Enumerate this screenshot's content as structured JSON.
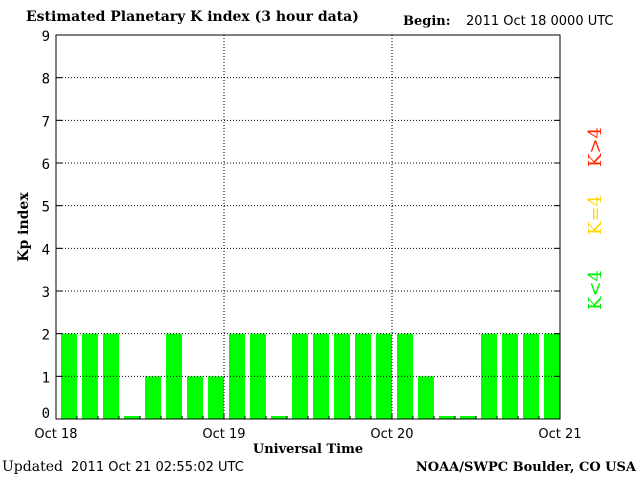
{
  "header": {
    "title": "Estimated Planetary K index (3 hour data)",
    "begin_label": "Begin:",
    "begin_value": "2011 Oct 18 0000 UTC"
  },
  "footer": {
    "updated_label": "Updated",
    "updated_value": "2011 Oct 21 02:55:02 UTC",
    "credit": "NOAA/SWPC Boulder, CO USA"
  },
  "legend": [
    {
      "label": "K>4",
      "color": "#ff2a00"
    },
    {
      "label": "K=4",
      "color": "#ffd700"
    },
    {
      "label": "K<4",
      "color": "#00ee00"
    }
  ],
  "chart_data": {
    "type": "bar",
    "title": "Estimated Planetary K index (3 hour data)",
    "xlabel": "Universal Time",
    "ylabel": "Kp index",
    "ylim": [
      0,
      9
    ],
    "yticks": [
      "0",
      "1",
      "2",
      "3",
      "4",
      "5",
      "6",
      "7",
      "8",
      "9"
    ],
    "xticks": [
      "Oct 18",
      "Oct 19",
      "Oct 20",
      "Oct 21"
    ],
    "interval_hours": 3,
    "bar_color": "#00ff00",
    "grid": "dotted",
    "values": [
      2,
      2,
      2,
      0,
      1,
      2,
      1,
      1,
      2,
      2,
      0,
      2,
      2,
      2,
      2,
      2,
      2,
      1,
      0,
      0,
      2,
      2,
      2,
      2
    ]
  }
}
